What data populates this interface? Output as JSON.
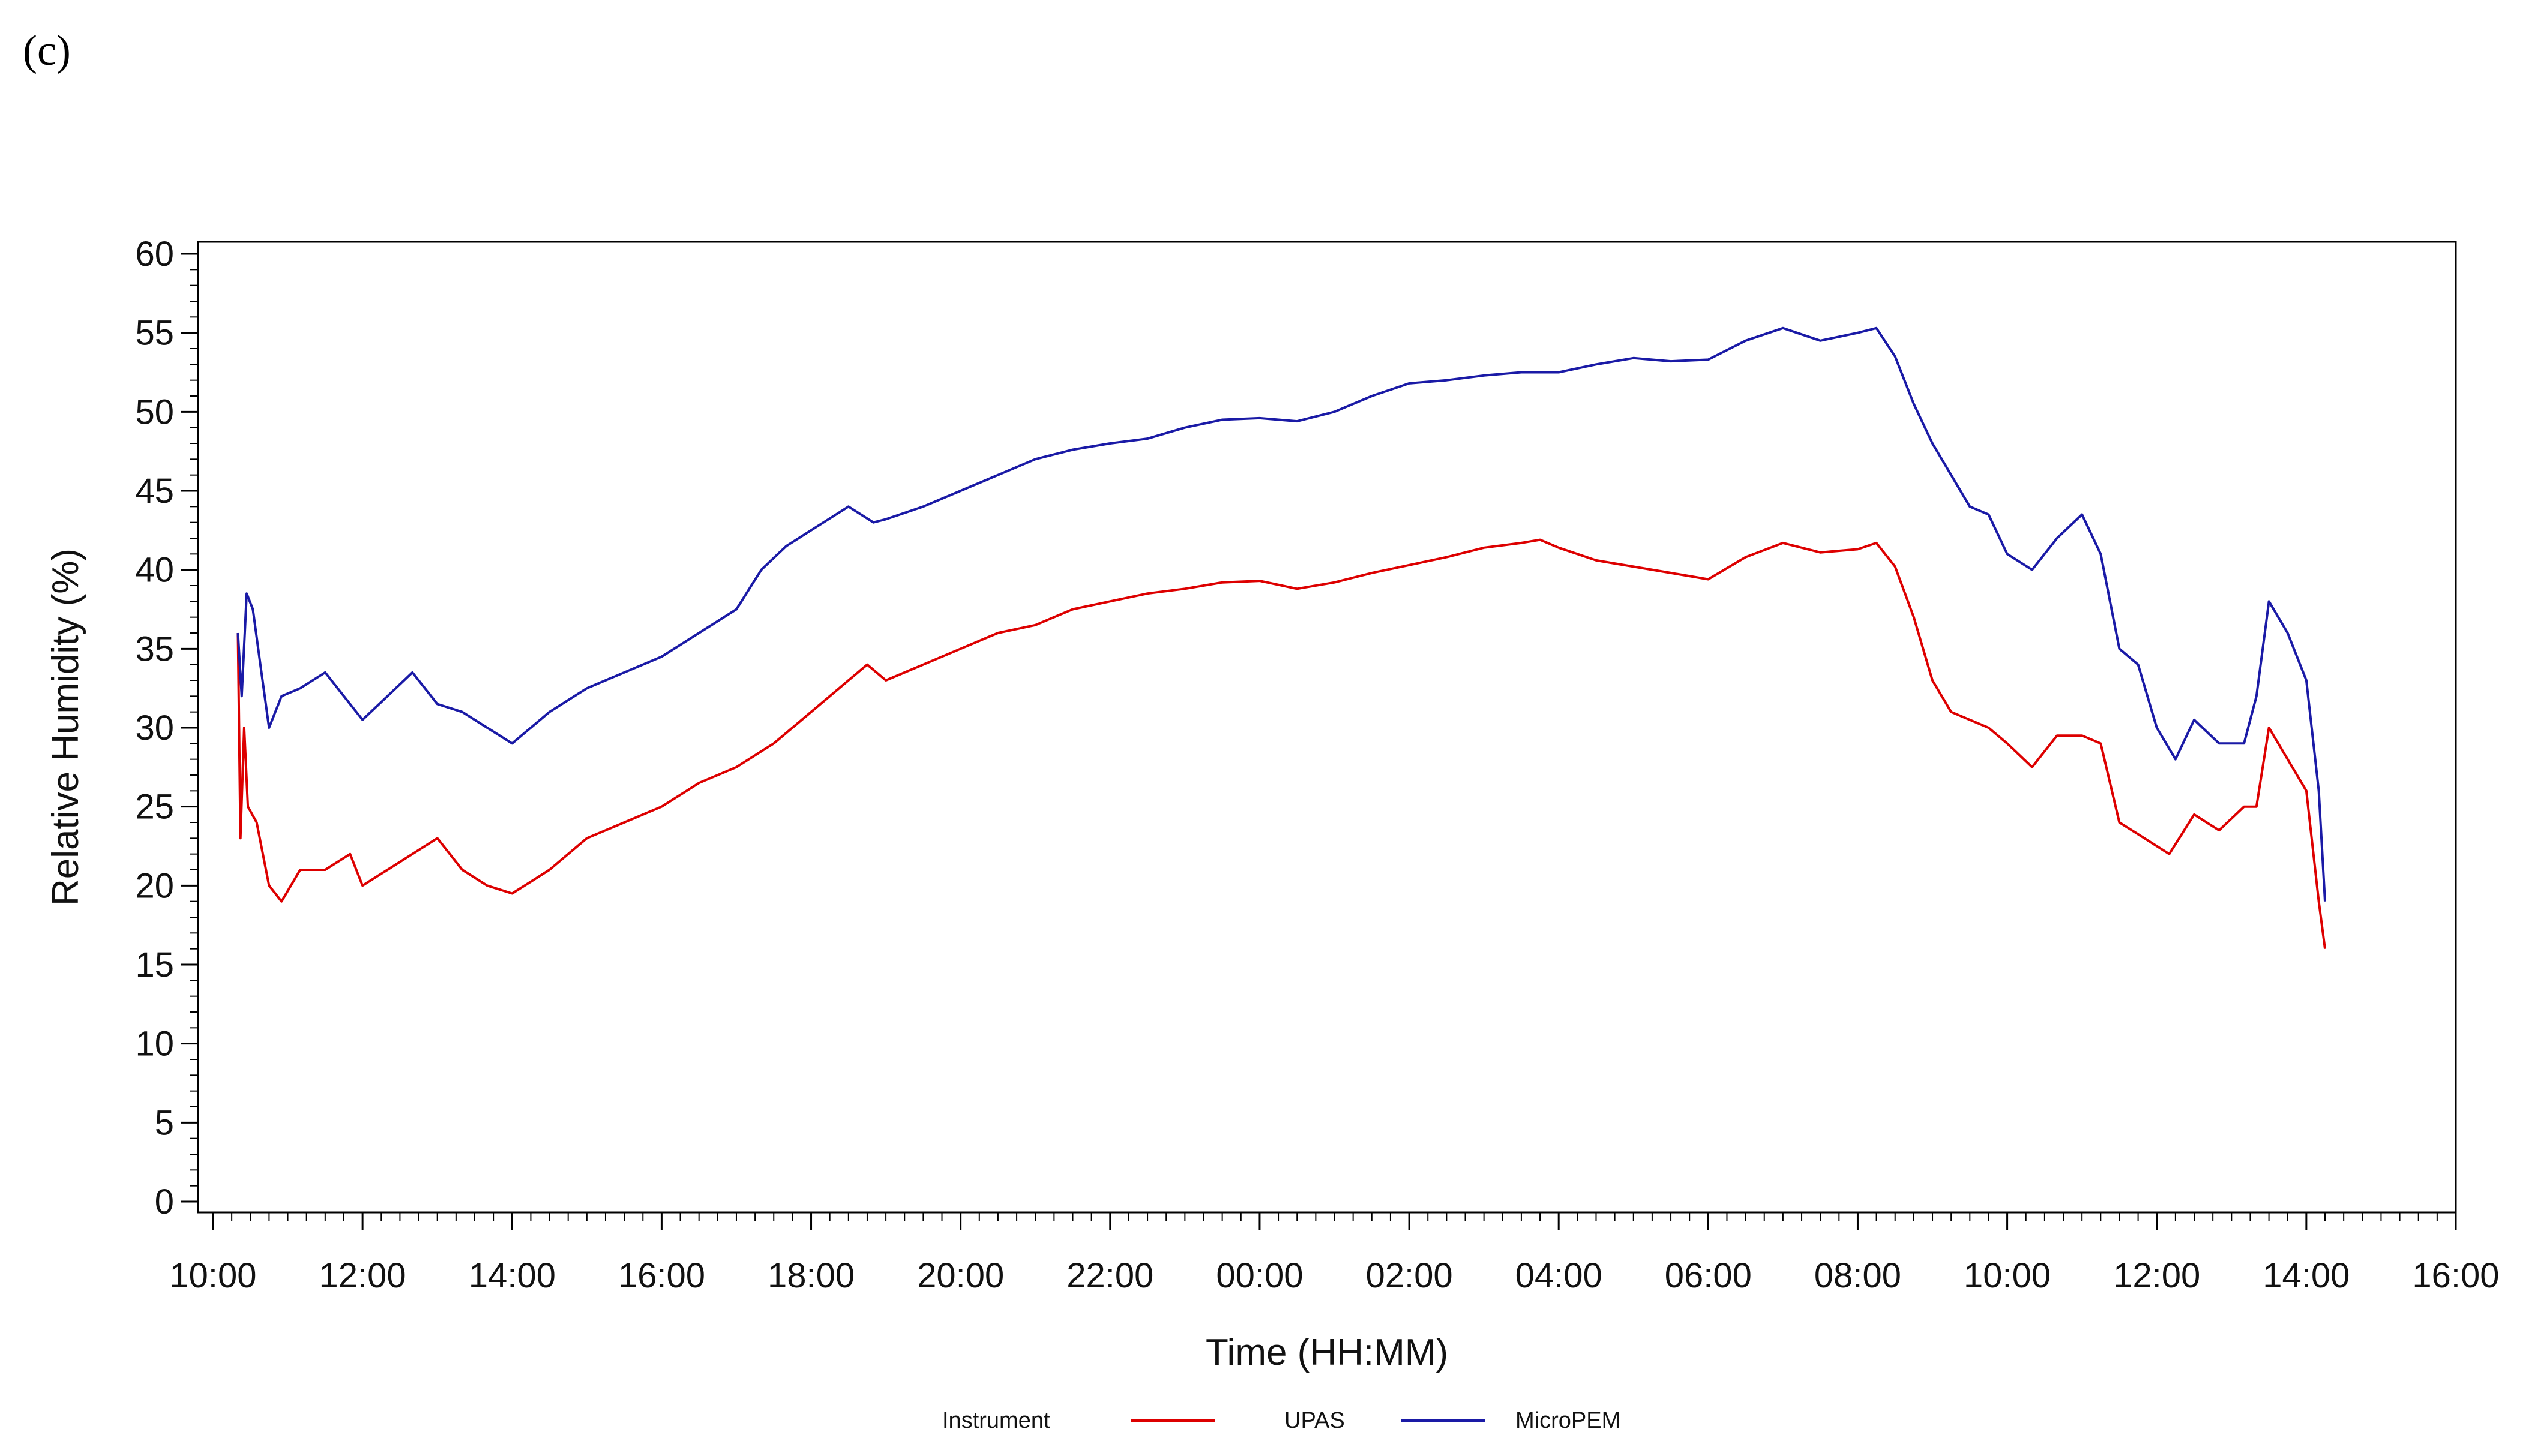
{
  "panel_label": "(c)",
  "legend": {
    "title": "Instrument"
  },
  "chart_data": {
    "type": "line",
    "xlabel": "Time (HH:MM)",
    "ylabel": "Relative Humidity (%)",
    "ylim": [
      0,
      60
    ],
    "yticks": [
      0,
      5,
      10,
      15,
      20,
      25,
      30,
      35,
      40,
      45,
      50,
      55,
      60
    ],
    "xlim": [
      "10:00",
      "16:00 (+1 day)"
    ],
    "xtick_labels": [
      "10:00",
      "12:00",
      "14:00",
      "16:00",
      "18:00",
      "20:00",
      "22:00",
      "00:00",
      "02:00",
      "04:00",
      "06:00",
      "08:00",
      "10:00",
      "12:00",
      "14:00",
      "16:00"
    ],
    "grid": false,
    "legend_position": "bottom",
    "series": [
      {
        "name": "UPAS",
        "color": "#dd0000",
        "points": [
          [
            "10:20",
            36
          ],
          [
            "10:22",
            23
          ],
          [
            "10:25",
            30
          ],
          [
            "10:28",
            25
          ],
          [
            "10:35",
            24
          ],
          [
            "10:45",
            20
          ],
          [
            "10:55",
            19
          ],
          [
            "11:10",
            21
          ],
          [
            "11:30",
            21
          ],
          [
            "11:50",
            22
          ],
          [
            "12:00",
            20
          ],
          [
            "12:20",
            21
          ],
          [
            "12:40",
            22
          ],
          [
            "13:00",
            23
          ],
          [
            "13:20",
            21
          ],
          [
            "13:40",
            20
          ],
          [
            "14:00",
            19.5
          ],
          [
            "14:30",
            21
          ],
          [
            "15:00",
            23
          ],
          [
            "15:30",
            24
          ],
          [
            "16:00",
            25
          ],
          [
            "16:30",
            26.5
          ],
          [
            "17:00",
            27.5
          ],
          [
            "17:30",
            29
          ],
          [
            "18:00",
            31
          ],
          [
            "18:30",
            33
          ],
          [
            "18:45",
            34
          ],
          [
            "19:00",
            33
          ],
          [
            "19:30",
            34
          ],
          [
            "20:00",
            35
          ],
          [
            "20:30",
            36
          ],
          [
            "21:00",
            36.5
          ],
          [
            "21:30",
            37.5
          ],
          [
            "22:00",
            38
          ],
          [
            "22:30",
            38.5
          ],
          [
            "23:00",
            38.8
          ],
          [
            "23:30",
            39.2
          ],
          [
            "00:00",
            39.3
          ],
          [
            "00:30",
            38.8
          ],
          [
            "01:00",
            39.2
          ],
          [
            "01:30",
            39.8
          ],
          [
            "02:00",
            40.3
          ],
          [
            "02:30",
            40.8
          ],
          [
            "03:00",
            41.4
          ],
          [
            "03:30",
            41.7
          ],
          [
            "03:45",
            41.9
          ],
          [
            "04:00",
            41.4
          ],
          [
            "04:30",
            40.6
          ],
          [
            "05:00",
            40.2
          ],
          [
            "05:30",
            39.8
          ],
          [
            "06:00",
            39.4
          ],
          [
            "06:30",
            40.8
          ],
          [
            "07:00",
            41.7
          ],
          [
            "07:30",
            41.1
          ],
          [
            "08:00",
            41.3
          ],
          [
            "08:15",
            41.7
          ],
          [
            "08:30",
            40.2
          ],
          [
            "08:45",
            37
          ],
          [
            "09:00",
            33
          ],
          [
            "09:15",
            31
          ],
          [
            "09:30",
            30.5
          ],
          [
            "09:45",
            30
          ],
          [
            "10:00",
            29
          ],
          [
            "10:20",
            27.5
          ],
          [
            "10:40",
            29.5
          ],
          [
            "11:00",
            29.5
          ],
          [
            "11:15",
            29
          ],
          [
            "11:30",
            24
          ],
          [
            "11:50",
            23
          ],
          [
            "12:10",
            22
          ],
          [
            "12:30",
            24.5
          ],
          [
            "12:50",
            23.5
          ],
          [
            "13:10",
            25
          ],
          [
            "13:20",
            25
          ],
          [
            "13:30",
            30
          ],
          [
            "13:45",
            28
          ],
          [
            "14:00",
            26
          ],
          [
            "14:10",
            19
          ],
          [
            "14:15",
            16
          ]
        ]
      },
      {
        "name": "MicroPEM",
        "color": "#1a1aa6",
        "points": [
          [
            "10:20",
            36
          ],
          [
            "10:23",
            32
          ],
          [
            "10:27",
            38.5
          ],
          [
            "10:32",
            37.5
          ],
          [
            "10:38",
            34
          ],
          [
            "10:45",
            30
          ],
          [
            "10:55",
            32
          ],
          [
            "11:10",
            32.5
          ],
          [
            "11:30",
            33.5
          ],
          [
            "11:50",
            31.5
          ],
          [
            "12:00",
            30.5
          ],
          [
            "12:20",
            32
          ],
          [
            "12:40",
            33.5
          ],
          [
            "13:00",
            31.5
          ],
          [
            "13:20",
            31
          ],
          [
            "13:40",
            30
          ],
          [
            "14:00",
            29
          ],
          [
            "14:30",
            31
          ],
          [
            "15:00",
            32.5
          ],
          [
            "15:30",
            33.5
          ],
          [
            "16:00",
            34.5
          ],
          [
            "16:30",
            36
          ],
          [
            "17:00",
            37.5
          ],
          [
            "17:20",
            40
          ],
          [
            "17:40",
            41.5
          ],
          [
            "18:00",
            42.5
          ],
          [
            "18:30",
            44
          ],
          [
            "18:50",
            43
          ],
          [
            "19:00",
            43.2
          ],
          [
            "19:30",
            44
          ],
          [
            "20:00",
            45
          ],
          [
            "20:30",
            46
          ],
          [
            "21:00",
            47
          ],
          [
            "21:30",
            47.6
          ],
          [
            "22:00",
            48
          ],
          [
            "22:30",
            48.3
          ],
          [
            "23:00",
            49
          ],
          [
            "23:30",
            49.5
          ],
          [
            "00:00",
            49.6
          ],
          [
            "00:30",
            49.4
          ],
          [
            "01:00",
            50
          ],
          [
            "01:30",
            51
          ],
          [
            "02:00",
            51.8
          ],
          [
            "02:30",
            52
          ],
          [
            "03:00",
            52.3
          ],
          [
            "03:30",
            52.5
          ],
          [
            "04:00",
            52.5
          ],
          [
            "04:30",
            53
          ],
          [
            "05:00",
            53.4
          ],
          [
            "05:30",
            53.2
          ],
          [
            "06:00",
            53.3
          ],
          [
            "06:30",
            54.5
          ],
          [
            "07:00",
            55.3
          ],
          [
            "07:30",
            54.5
          ],
          [
            "08:00",
            55
          ],
          [
            "08:15",
            55.3
          ],
          [
            "08:30",
            53.5
          ],
          [
            "08:45",
            50.5
          ],
          [
            "09:00",
            48
          ],
          [
            "09:15",
            46
          ],
          [
            "09:30",
            44
          ],
          [
            "09:45",
            43.5
          ],
          [
            "10:00",
            41
          ],
          [
            "10:20",
            40
          ],
          [
            "10:40",
            42
          ],
          [
            "11:00",
            43.5
          ],
          [
            "11:15",
            41
          ],
          [
            "11:30",
            35
          ],
          [
            "11:45",
            34
          ],
          [
            "12:00",
            30
          ],
          [
            "12:15",
            28
          ],
          [
            "12:30",
            30.5
          ],
          [
            "12:50",
            29
          ],
          [
            "13:10",
            29
          ],
          [
            "13:20",
            32
          ],
          [
            "13:30",
            38
          ],
          [
            "13:45",
            36
          ],
          [
            "14:00",
            33
          ],
          [
            "14:10",
            26
          ],
          [
            "14:15",
            19
          ]
        ]
      }
    ]
  }
}
